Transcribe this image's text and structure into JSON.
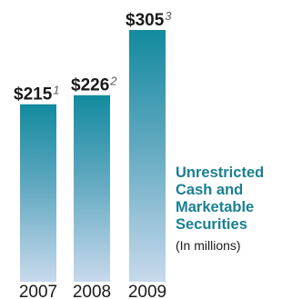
{
  "chart_data": {
    "type": "bar",
    "categories": [
      "2007",
      "2008",
      "2009"
    ],
    "values": [
      215,
      226,
      305
    ],
    "value_labels": [
      "$215",
      "$226",
      "$305"
    ],
    "footnotes": [
      "1",
      "2",
      "3"
    ],
    "title_lines": [
      "Unrestricted",
      "Cash and",
      "Marketable",
      "Securities"
    ],
    "subtitle": "(In millions)",
    "ylim": [
      0,
      305
    ],
    "grid": false,
    "colors": {
      "bar_top": "#138a9e",
      "bar_mid": "#5fa8c0",
      "bar_bottom": "#c8d9ec",
      "title": "#1a7f92",
      "text": "#1a1a1a",
      "footnote": "#5a5a5a"
    }
  }
}
